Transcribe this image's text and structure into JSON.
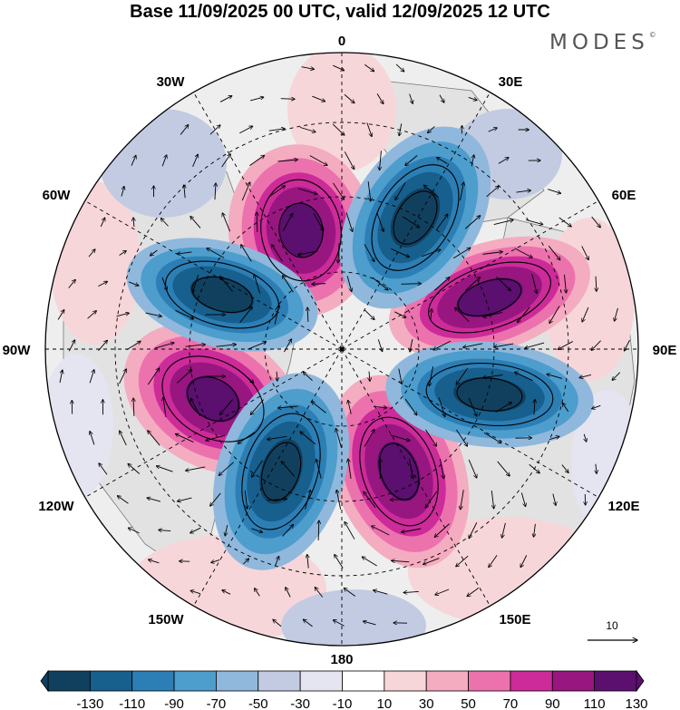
{
  "header": {
    "title": "Base 11/09/2025 00 UTC, valid 12/09/2025 12 UTC",
    "brand": "MODES",
    "brand_mark": "©"
  },
  "map": {
    "projection": "north-polar-stereographic",
    "longitude_labels": {
      "top": "0",
      "top_right": "30E",
      "upper_right": "60E",
      "right": "90E",
      "lower_right": "120E",
      "bottom_right": "150E",
      "bottom": "180",
      "bottom_left": "150W",
      "lower_left": "120W",
      "left": "90W",
      "upper_left": "60W",
      "top_left": "30W"
    },
    "vortices": [
      {
        "name": "vortex-0",
        "sign": "positive",
        "bearing_deg": 352
      },
      {
        "name": "vortex-1",
        "sign": "negative",
        "bearing_deg": 32
      },
      {
        "name": "vortex-2",
        "sign": "positive",
        "bearing_deg": 72
      },
      {
        "name": "vortex-3",
        "sign": "negative",
        "bearing_deg": 107
      },
      {
        "name": "vortex-4",
        "sign": "positive",
        "bearing_deg": 152
      },
      {
        "name": "vortex-5",
        "sign": "negative",
        "bearing_deg": 198
      },
      {
        "name": "vortex-6",
        "sign": "positive",
        "bearing_deg": 243
      },
      {
        "name": "vortex-7",
        "sign": "negative",
        "bearing_deg": 290
      }
    ],
    "reference_vector": {
      "label": "10"
    }
  },
  "colorbar": {
    "tick_labels": [
      "-130",
      "-110",
      "-90",
      "-70",
      "-50",
      "-30",
      "-10",
      "10",
      "30",
      "50",
      "70",
      "90",
      "110",
      "130"
    ],
    "colors": [
      "#11405f",
      "#175f8d",
      "#2c7fb5",
      "#4d9dcd",
      "#8fb8dc",
      "#c3cbe3",
      "#e5e4f1",
      "#ffffff",
      "#f7d6da",
      "#f4acc0",
      "#ec72ad",
      "#cc2b99",
      "#98167f",
      "#5b0f6f"
    ]
  }
}
